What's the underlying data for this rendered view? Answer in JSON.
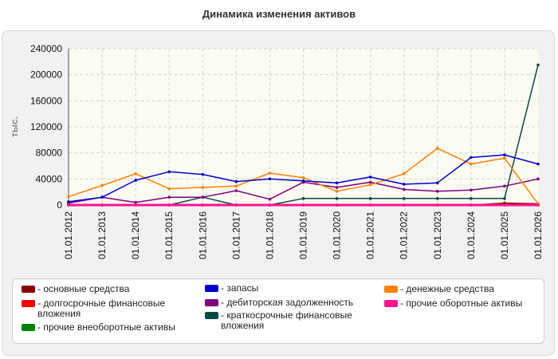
{
  "chart_data": {
    "type": "line",
    "title": "Динамика изменения активов",
    "ylabel": "тыс.",
    "xlabel": "",
    "ylim": [
      0,
      240000
    ],
    "yticks": [
      0,
      40000,
      80000,
      120000,
      160000,
      200000,
      240000
    ],
    "ytick_labels": [
      "0",
      "40000",
      "80000",
      "120000",
      "160000",
      "200000",
      "240000"
    ],
    "categories": [
      "01.01.2012",
      "01.01.2013",
      "01.01.2014",
      "01.01.2015",
      "01.01.2016",
      "01.01.2017",
      "01.01.2018",
      "01.01.2019",
      "01.01.2020",
      "01.01.2021",
      "01.01.2022",
      "01.01.2023",
      "01.01.2024",
      "01.01.2025",
      "01.01.2026"
    ],
    "grid": true,
    "legend_position": "bottom",
    "series": [
      {
        "name": "- основные средства",
        "color": "#8b0000",
        "values": [
          0,
          0,
          0,
          0,
          0,
          0,
          0,
          0,
          0,
          0,
          0,
          0,
          0,
          3000,
          2000
        ]
      },
      {
        "name": "- запасы",
        "color": "#0000cc",
        "values": [
          5000,
          12000,
          38000,
          51000,
          47000,
          36000,
          40000,
          37000,
          34000,
          43000,
          32000,
          34000,
          73000,
          77000,
          63000
        ]
      },
      {
        "name": "- денежные средства",
        "color": "#ff8000",
        "values": [
          13000,
          30000,
          48000,
          25000,
          27000,
          29000,
          49000,
          42000,
          21000,
          31000,
          48000,
          87000,
          63000,
          72000,
          2000
        ]
      },
      {
        "name": "- долгосрочные финансовые вложения",
        "color": "#ff0000",
        "values": [
          0,
          0,
          0,
          0,
          0,
          0,
          0,
          0,
          0,
          0,
          0,
          0,
          0,
          0,
          0
        ]
      },
      {
        "name": "- дебиторская задолженность",
        "color": "#800080",
        "values": [
          3000,
          12000,
          4000,
          12000,
          12000,
          22000,
          9000,
          35000,
          27000,
          35000,
          24000,
          21000,
          23000,
          29000,
          40000
        ]
      },
      {
        "name": "- прочие оборотные активы",
        "color": "#ff1493",
        "values": [
          0,
          0,
          0,
          0,
          0,
          0,
          0,
          0,
          0,
          0,
          0,
          0,
          0,
          0,
          0
        ]
      },
      {
        "name": "- прочие внеоборотные активы",
        "color": "#008000",
        "values": [
          0,
          0,
          0,
          0,
          0,
          0,
          0,
          0,
          0,
          0,
          0,
          0,
          0,
          0,
          0
        ]
      },
      {
        "name": "- краткосрочные финансовые вложения",
        "color": "#004d40",
        "values": [
          0,
          0,
          0,
          0,
          12000,
          0,
          0,
          10000,
          10000,
          10000,
          10000,
          10000,
          10000,
          10000,
          215000
        ]
      }
    ]
  }
}
